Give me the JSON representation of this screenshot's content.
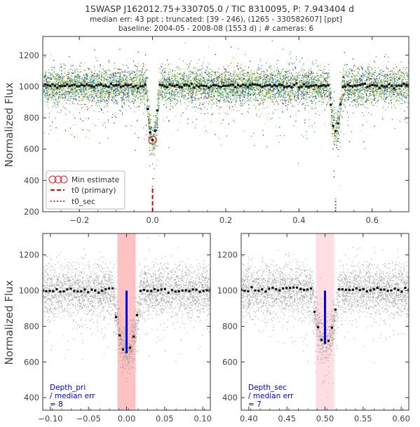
{
  "figure": {
    "title": "1SWASP J162012.75+330705.0 / TIC 8310095, P: 7.943404 d",
    "subtitle_line1": "median err: 43 ppt ; truncated: [39 - 246), (1265 - 330582607] [ppt]",
    "subtitle_line2": "baseline: 2004-05 - 2008-08 (1553 d)  ;  # cameras: 6",
    "ylabel_top": "Normalized Flux",
    "ylabel_bottom": "Normalized Flux"
  },
  "colors": {
    "camera_palette": [
      "#440154",
      "#31688e",
      "#21918c",
      "#35b779",
      "#90d743",
      "#fde725"
    ],
    "binned": "#111111",
    "minimum_marker": "#dd2222",
    "t0_primary": "#dd0000",
    "t0_sec": "#dd0000",
    "raw_gray": "#888888",
    "window_primary": "#ff9999",
    "window_secondary": "#ffc8d0",
    "depth_bar": "#0000ee"
  },
  "legend": {
    "min_estimate": "Min estimate",
    "t0_primary": "t0 (primary)",
    "t0_sec": "t0_sec"
  },
  "panels": {
    "primary_note": [
      "Depth_pri",
      "/ median err",
      " = 8"
    ],
    "secondary_note": [
      "Depth_sec",
      "/ median err",
      " = 7"
    ]
  },
  "chart_data": [
    {
      "type": "scatter",
      "title": "1SWASP J162012.75+330705.0 / TIC 8310095, P: 7.943404 d",
      "xlabel": "",
      "ylabel": "Normalized Flux",
      "xlim": [
        -0.3,
        0.7
      ],
      "ylim": [
        200,
        1320
      ],
      "x_ticks": [
        -0.2,
        0.0,
        0.2,
        0.4,
        0.6
      ],
      "x_tick_labels": [
        "−0.2",
        "0.0",
        "0.2",
        "0.4",
        "0.6"
      ],
      "y_ticks": [
        200,
        400,
        600,
        800,
        1000,
        1200
      ],
      "series": [
        {
          "name": "Min estimate",
          "type": "marker",
          "x": [
            0.0
          ],
          "y": [
            658
          ]
        },
        {
          "name": "t0 (primary)",
          "type": "vline",
          "x": 0.0,
          "y_range": [
            200,
            365
          ]
        },
        {
          "name": "t0_sec",
          "type": "vline",
          "x": 0.5,
          "y_range": [
            200,
            285
          ]
        }
      ],
      "binned_curve": {
        "description": "phase-binned median",
        "baseline": 1005,
        "primary_eclipse": {
          "center": 0.0,
          "depth_min": 658,
          "half_width": 0.018
        },
        "secondary_eclipse": {
          "center": 0.5,
          "depth_min": 715,
          "half_width": 0.018
        }
      },
      "raw_points": {
        "scatter_ppt": 55,
        "n_cameras": 6
      }
    },
    {
      "type": "scatter",
      "xlabel": "",
      "ylabel": "Normalized Flux",
      "xlim": [
        -0.11,
        0.11
      ],
      "ylim": [
        330,
        1320
      ],
      "x_ticks": [
        -0.1,
        -0.05,
        0.0,
        0.05,
        0.1
      ],
      "x_tick_labels": [
        "−0.10",
        "−0.05",
        "0.00",
        "0.05",
        "0.10"
      ],
      "y_ticks": [
        400,
        600,
        800,
        1000,
        1200
      ],
      "shaded_window": [
        -0.012,
        0.012
      ],
      "depth_bar": {
        "x": 0.0,
        "y_from": 655,
        "y_to": 1000
      },
      "binned_curve": {
        "baseline": 1000,
        "center": 0.0,
        "depth_min": 655,
        "half_width": 0.018
      }
    },
    {
      "type": "scatter",
      "xlabel": "",
      "ylabel": "",
      "xlim": [
        0.39,
        0.61
      ],
      "ylim": [
        330,
        1320
      ],
      "x_ticks": [
        0.4,
        0.45,
        0.5,
        0.55,
        0.6
      ],
      "x_tick_labels": [
        "0.40",
        "0.45",
        "0.50",
        "0.55",
        "0.60"
      ],
      "y_ticks": [
        400,
        600,
        800,
        1000,
        1200
      ],
      "shaded_window": [
        0.488,
        0.512
      ],
      "depth_bar": {
        "x": 0.5,
        "y_from": 712,
        "y_to": 1000
      },
      "binned_curve": {
        "baseline": 1005,
        "center": 0.5,
        "depth_min": 712,
        "half_width": 0.018
      }
    }
  ]
}
